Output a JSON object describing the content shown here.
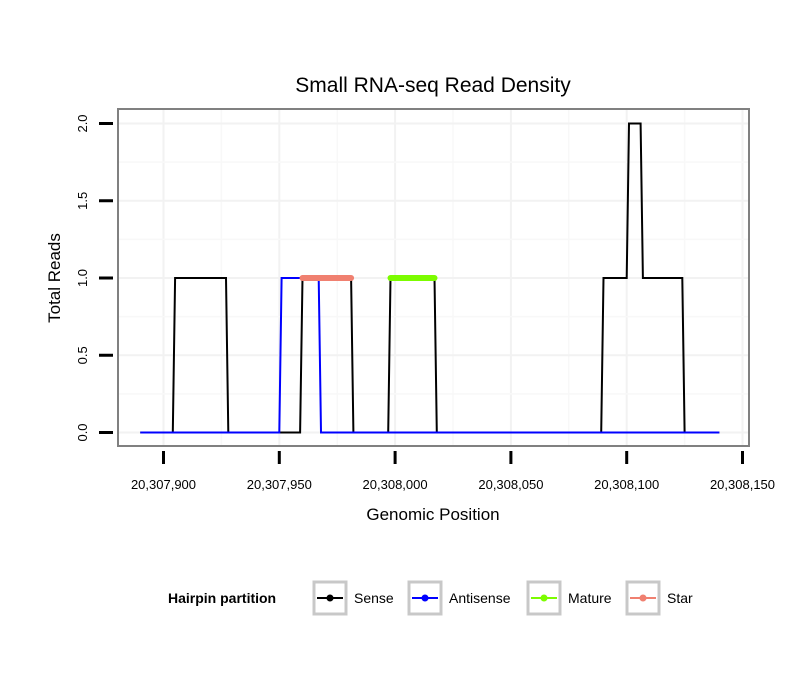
{
  "chart_data": {
    "type": "line",
    "title": "Small RNA-seq Read Density",
    "xlabel": "Genomic Position",
    "ylabel": "Total Reads",
    "xlim": [
      20307890,
      20308140
    ],
    "ylim": [
      0,
      2
    ],
    "x_ticks": [
      20307900,
      20307950,
      20308000,
      20308050,
      20308100,
      20308150
    ],
    "x_tick_labels": [
      "20,307,900",
      "20,307,950",
      "20,308,000",
      "20,308,050",
      "20,308,100",
      "20,308,150"
    ],
    "y_ticks": [
      0,
      0.5,
      1,
      1.5,
      2
    ],
    "y_tick_labels": [
      "0.0",
      "0.5",
      "1.0",
      "1.5",
      "2.0"
    ],
    "grid": true,
    "legend": {
      "title": "Hairpin partition",
      "position": "bottom"
    },
    "series": [
      {
        "name": "Sense",
        "color": "#000000",
        "width": "thin",
        "x": [
          20307890,
          20307904,
          20307905,
          20307927,
          20307928,
          20307959,
          20307960,
          20307981,
          20307982,
          20307997,
          20307998,
          20308017,
          20308018,
          20308089,
          20308090,
          20308100,
          20308101,
          20308106,
          20308107,
          20308124,
          20308125,
          20308140
        ],
        "y": [
          0,
          0,
          1,
          1,
          0,
          0,
          1,
          1,
          0,
          0,
          1,
          1,
          0,
          0,
          1,
          1,
          2,
          2,
          1,
          1,
          0,
          0
        ]
      },
      {
        "name": "Antisense",
        "color": "#0000ff",
        "width": "thin",
        "x": [
          20307890,
          20307950,
          20307951,
          20307967,
          20307968,
          20308140
        ],
        "y": [
          0,
          0,
          1,
          1,
          0,
          0
        ]
      },
      {
        "name": "Mature",
        "color": "#7cfc00",
        "width": "thick",
        "x": [
          20307998,
          20308017
        ],
        "y": [
          1,
          1
        ]
      },
      {
        "name": "Star",
        "color": "#f08070",
        "width": "thick",
        "x": [
          20307960,
          20307981
        ],
        "y": [
          1,
          1
        ]
      }
    ]
  }
}
